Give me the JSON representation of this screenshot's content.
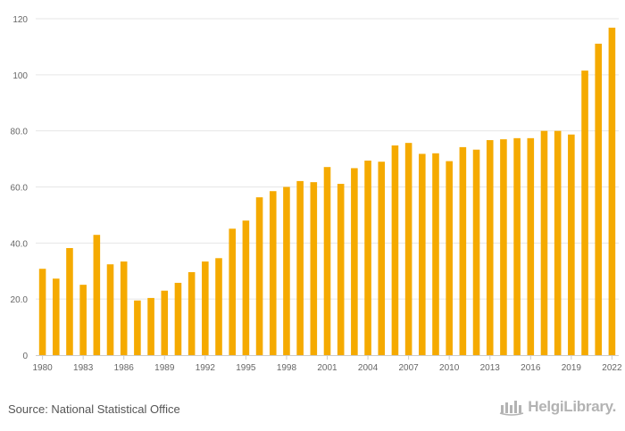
{
  "chart_data": {
    "type": "bar",
    "x": [
      1980,
      1981,
      1982,
      1983,
      1984,
      1985,
      1986,
      1987,
      1988,
      1989,
      1990,
      1991,
      1992,
      1993,
      1994,
      1995,
      1996,
      1997,
      1998,
      1999,
      2000,
      2001,
      2002,
      2003,
      2004,
      2005,
      2006,
      2007,
      2008,
      2009,
      2010,
      2011,
      2012,
      2013,
      2014,
      2015,
      2016,
      2017,
      2018,
      2019,
      2020,
      2021,
      2022
    ],
    "values": [
      30.8,
      27.3,
      38.2,
      25.1,
      42.9,
      32.4,
      33.4,
      19.5,
      20.4,
      23.0,
      25.8,
      29.6,
      33.4,
      34.6,
      45.1,
      48.0,
      56.3,
      58.5,
      60.0,
      62.1,
      61.7,
      67.1,
      61.1,
      66.7,
      69.4,
      69.0,
      74.8,
      75.7,
      71.8,
      72.0,
      69.2,
      74.2,
      73.3,
      76.7,
      77.0,
      77.4,
      77.4,
      80.0,
      80.0,
      78.7,
      101.5,
      111.1,
      116.8
    ],
    "tick_labels": [
      "1980",
      "1983",
      "1986",
      "1989",
      "1992",
      "1995",
      "1998",
      "2001",
      "2004",
      "2007",
      "2010",
      "2013",
      "2016",
      "2019",
      "2022"
    ],
    "y_tick_labels": [
      "0",
      "20.0",
      "40.0",
      "60.0",
      "80.0",
      "100",
      "120"
    ],
    "y_ticks": [
      0,
      20,
      40,
      60,
      80,
      100,
      120
    ],
    "ylim": [
      0,
      120
    ],
    "bar_color": "#f5aa00",
    "grid": true,
    "title": "",
    "xlabel": "",
    "ylabel": ""
  },
  "footer": {
    "source": "Source: National Statistical Office",
    "brand": "HelgiLibrary."
  }
}
